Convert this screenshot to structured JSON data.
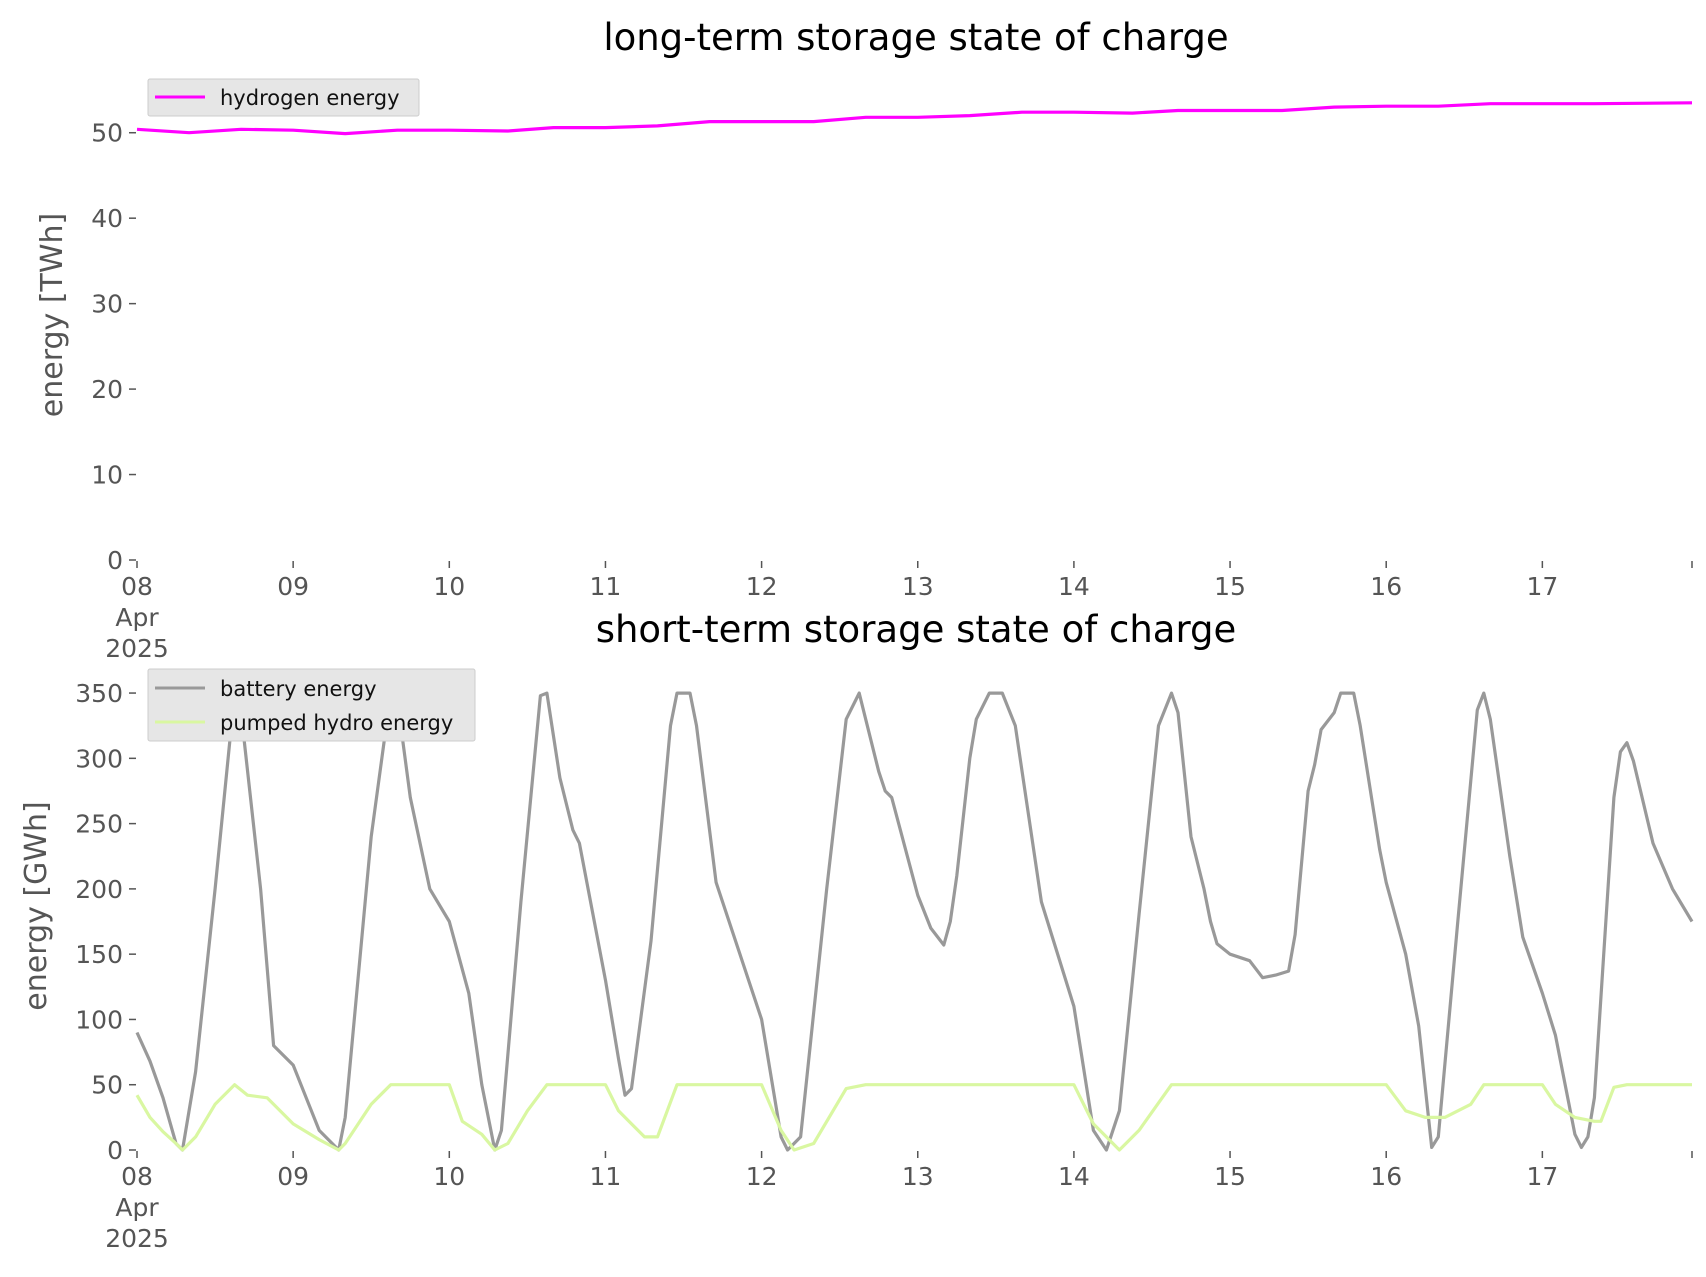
{
  "chart_data": [
    {
      "type": "line",
      "title": "long-term storage state of charge",
      "ylabel": "energy [TWh]",
      "xlabel": "",
      "ylim": [
        0,
        55
      ],
      "yticks": [
        0,
        10,
        20,
        30,
        40,
        50
      ],
      "x_start": "2025-04-08 00:00",
      "x_end": "2025-04-17 23:00",
      "x_tick_labels": [
        {
          "x": "2025-04-08",
          "lines": [
            "08",
            "Apr",
            "2025"
          ]
        },
        {
          "x": "2025-04-09",
          "lines": [
            "09"
          ]
        },
        {
          "x": "2025-04-10",
          "lines": [
            "10"
          ]
        },
        {
          "x": "2025-04-11",
          "lines": [
            "11"
          ]
        },
        {
          "x": "2025-04-12",
          "lines": [
            "12"
          ]
        },
        {
          "x": "2025-04-13",
          "lines": [
            "13"
          ]
        },
        {
          "x": "2025-04-14",
          "lines": [
            "14"
          ]
        },
        {
          "x": "2025-04-15",
          "lines": [
            "15"
          ]
        },
        {
          "x": "2025-04-16",
          "lines": [
            "16"
          ]
        },
        {
          "x": "2025-04-17",
          "lines": [
            "17"
          ]
        }
      ],
      "grid": false,
      "legend_position": "top-left",
      "series": [
        {
          "name": "hydrogen energy",
          "color": "#ff00ff",
          "points": [
            [
              "2025-04-08 00:00",
              50.4
            ],
            [
              "2025-04-08 08:00",
              50.0
            ],
            [
              "2025-04-08 16:00",
              50.4
            ],
            [
              "2025-04-09 00:00",
              50.3
            ],
            [
              "2025-04-09 08:00",
              49.9
            ],
            [
              "2025-04-09 16:00",
              50.3
            ],
            [
              "2025-04-10 00:00",
              50.3
            ],
            [
              "2025-04-10 09:00",
              50.2
            ],
            [
              "2025-04-10 16:00",
              50.6
            ],
            [
              "2025-04-11 00:00",
              50.6
            ],
            [
              "2025-04-11 08:00",
              50.8
            ],
            [
              "2025-04-11 16:00",
              51.3
            ],
            [
              "2025-04-12 00:00",
              51.3
            ],
            [
              "2025-04-12 08:00",
              51.3
            ],
            [
              "2025-04-12 16:00",
              51.8
            ],
            [
              "2025-04-13 00:00",
              51.8
            ],
            [
              "2025-04-13 08:00",
              52.0
            ],
            [
              "2025-04-13 16:00",
              52.4
            ],
            [
              "2025-04-14 00:00",
              52.4
            ],
            [
              "2025-04-14 09:00",
              52.3
            ],
            [
              "2025-04-14 16:00",
              52.6
            ],
            [
              "2025-04-15 00:00",
              52.6
            ],
            [
              "2025-04-15 08:00",
              52.6
            ],
            [
              "2025-04-15 16:00",
              53.0
            ],
            [
              "2025-04-16 00:00",
              53.1
            ],
            [
              "2025-04-16 08:00",
              53.1
            ],
            [
              "2025-04-16 16:00",
              53.4
            ],
            [
              "2025-04-17 00:00",
              53.4
            ],
            [
              "2025-04-17 08:00",
              53.4
            ],
            [
              "2025-04-17 23:00",
              53.5
            ]
          ]
        }
      ]
    },
    {
      "type": "line",
      "title": "short-term storage state of charge",
      "ylabel": "energy [GWh]",
      "xlabel": "",
      "ylim": [
        0,
        360
      ],
      "yticks": [
        0,
        50,
        100,
        150,
        200,
        250,
        300,
        350
      ],
      "x_start": "2025-04-08 00:00",
      "x_end": "2025-04-17 23:00",
      "x_tick_labels": [
        {
          "x": "2025-04-08",
          "lines": [
            "08",
            "Apr",
            "2025"
          ]
        },
        {
          "x": "2025-04-09",
          "lines": [
            "09"
          ]
        },
        {
          "x": "2025-04-10",
          "lines": [
            "10"
          ]
        },
        {
          "x": "2025-04-11",
          "lines": [
            "11"
          ]
        },
        {
          "x": "2025-04-12",
          "lines": [
            "12"
          ]
        },
        {
          "x": "2025-04-13",
          "lines": [
            "13"
          ]
        },
        {
          "x": "2025-04-14",
          "lines": [
            "14"
          ]
        },
        {
          "x": "2025-04-15",
          "lines": [
            "15"
          ]
        },
        {
          "x": "2025-04-16",
          "lines": [
            "16"
          ]
        },
        {
          "x": "2025-04-17",
          "lines": [
            "17"
          ]
        }
      ],
      "grid": false,
      "legend_position": "top-left",
      "series": [
        {
          "name": "battery energy",
          "color": "#999999",
          "points": [
            [
              "2025-04-08 00:00",
              90
            ],
            [
              "2025-04-08 02:00",
              68
            ],
            [
              "2025-04-08 04:00",
              40
            ],
            [
              "2025-04-08 06:00",
              5
            ],
            [
              "2025-04-08 07:00",
              0
            ],
            [
              "2025-04-08 09:00",
              60
            ],
            [
              "2025-04-08 12:00",
              200
            ],
            [
              "2025-04-08 15:00",
              350
            ],
            [
              "2025-04-08 16:00",
              335
            ],
            [
              "2025-04-08 19:00",
              200
            ],
            [
              "2025-04-08 21:00",
              80
            ],
            [
              "2025-04-09 00:00",
              65
            ],
            [
              "2025-04-09 02:00",
              40
            ],
            [
              "2025-04-09 04:00",
              15
            ],
            [
              "2025-04-09 07:00",
              0
            ],
            [
              "2025-04-09 08:00",
              25
            ],
            [
              "2025-04-09 12:00",
              240
            ],
            [
              "2025-04-09 15:00",
              350
            ],
            [
              "2025-04-09 16:00",
              345
            ],
            [
              "2025-04-09 18:00",
              270
            ],
            [
              "2025-04-09 21:00",
              200
            ],
            [
              "2025-04-10 00:00",
              175
            ],
            [
              "2025-04-10 03:00",
              120
            ],
            [
              "2025-04-10 05:00",
              50
            ],
            [
              "2025-04-10 07:00",
              0
            ],
            [
              "2025-04-10 08:00",
              15
            ],
            [
              "2025-04-10 11:00",
              190
            ],
            [
              "2025-04-10 14:00",
              348
            ],
            [
              "2025-04-10 15:00",
              350
            ],
            [
              "2025-04-10 17:00",
              285
            ],
            [
              "2025-04-10 19:00",
              245
            ],
            [
              "2025-04-10 20:00",
              235
            ],
            [
              "2025-04-11 00:00",
              130
            ],
            [
              "2025-04-11 02:00",
              70
            ],
            [
              "2025-04-11 03:00",
              42
            ],
            [
              "2025-04-11 04:00",
              47
            ],
            [
              "2025-04-11 07:00",
              160
            ],
            [
              "2025-04-11 10:00",
              325
            ],
            [
              "2025-04-11 11:00",
              350
            ],
            [
              "2025-04-11 13:00",
              350
            ],
            [
              "2025-04-11 14:00",
              325
            ],
            [
              "2025-04-11 17:00",
              205
            ],
            [
              "2025-04-12 00:00",
              100
            ],
            [
              "2025-04-12 03:00",
              10
            ],
            [
              "2025-04-12 04:00",
              0
            ],
            [
              "2025-04-12 06:00",
              10
            ],
            [
              "2025-04-12 10:00",
              200
            ],
            [
              "2025-04-12 13:00",
              330
            ],
            [
              "2025-04-12 15:00",
              350
            ],
            [
              "2025-04-12 16:00",
              330
            ],
            [
              "2025-04-12 18:00",
              290
            ],
            [
              "2025-04-12 19:00",
              275
            ],
            [
              "2025-04-12 20:00",
              270
            ],
            [
              "2025-04-13 00:00",
              195
            ],
            [
              "2025-04-13 02:00",
              170
            ],
            [
              "2025-04-13 04:00",
              157
            ],
            [
              "2025-04-13 05:00",
              175
            ],
            [
              "2025-04-13 06:00",
              210
            ],
            [
              "2025-04-13 08:00",
              300
            ],
            [
              "2025-04-13 09:00",
              330
            ],
            [
              "2025-04-13 11:00",
              350
            ],
            [
              "2025-04-13 13:00",
              350
            ],
            [
              "2025-04-13 15:00",
              325
            ],
            [
              "2025-04-13 19:00",
              190
            ],
            [
              "2025-04-14 00:00",
              110
            ],
            [
              "2025-04-14 03:00",
              15
            ],
            [
              "2025-04-14 05:00",
              0
            ],
            [
              "2025-04-14 07:00",
              30
            ],
            [
              "2025-04-14 10:00",
              180
            ],
            [
              "2025-04-14 13:00",
              325
            ],
            [
              "2025-04-14 15:00",
              350
            ],
            [
              "2025-04-14 16:00",
              335
            ],
            [
              "2025-04-14 18:00",
              240
            ],
            [
              "2025-04-14 20:00",
              200
            ],
            [
              "2025-04-14 21:00",
              175
            ],
            [
              "2025-04-14 22:00",
              158
            ],
            [
              "2025-04-15 00:00",
              150
            ],
            [
              "2025-04-15 03:00",
              145
            ],
            [
              "2025-04-15 05:00",
              132
            ],
            [
              "2025-04-15 07:00",
              134
            ],
            [
              "2025-04-15 09:00",
              137
            ],
            [
              "2025-04-15 10:00",
              165
            ],
            [
              "2025-04-15 12:00",
              275
            ],
            [
              "2025-04-15 13:00",
              295
            ],
            [
              "2025-04-15 14:00",
              322
            ],
            [
              "2025-04-15 16:00",
              335
            ],
            [
              "2025-04-15 17:00",
              350
            ],
            [
              "2025-04-15 19:00",
              350
            ],
            [
              "2025-04-15 20:00",
              325
            ],
            [
              "2025-04-15 23:00",
              230
            ],
            [
              "2025-04-16 00:00",
              205
            ],
            [
              "2025-04-16 03:00",
              150
            ],
            [
              "2025-04-16 05:00",
              95
            ],
            [
              "2025-04-16 07:00",
              2
            ],
            [
              "2025-04-16 08:00",
              10
            ],
            [
              "2025-04-16 11:00",
              175
            ],
            [
              "2025-04-16 14:00",
              337
            ],
            [
              "2025-04-16 15:00",
              350
            ],
            [
              "2025-04-16 16:00",
              330
            ],
            [
              "2025-04-16 19:00",
              225
            ],
            [
              "2025-04-16 21:00",
              163
            ],
            [
              "2025-04-17 00:00",
              120
            ],
            [
              "2025-04-17 02:00",
              88
            ],
            [
              "2025-04-17 05:00",
              12
            ],
            [
              "2025-04-17 06:00",
              2
            ],
            [
              "2025-04-17 07:00",
              10
            ],
            [
              "2025-04-17 08:00",
              40
            ],
            [
              "2025-04-17 11:00",
              270
            ],
            [
              "2025-04-17 12:00",
              305
            ],
            [
              "2025-04-17 13:00",
              312
            ],
            [
              "2025-04-17 14:00",
              298
            ],
            [
              "2025-04-17 17:00",
              235
            ],
            [
              "2025-04-17 20:00",
              200
            ],
            [
              "2025-04-17 23:00",
              175
            ]
          ]
        },
        {
          "name": "pumped hydro energy",
          "color": "#d9f7a1",
          "points": [
            [
              "2025-04-08 00:00",
              42
            ],
            [
              "2025-04-08 02:00",
              25
            ],
            [
              "2025-04-08 04:00",
              14
            ],
            [
              "2025-04-08 06:00",
              5
            ],
            [
              "2025-04-08 07:00",
              0
            ],
            [
              "2025-04-08 09:00",
              10
            ],
            [
              "2025-04-08 12:00",
              35
            ],
            [
              "2025-04-08 15:00",
              50
            ],
            [
              "2025-04-08 17:00",
              42
            ],
            [
              "2025-04-08 20:00",
              40
            ],
            [
              "2025-04-09 00:00",
              20
            ],
            [
              "2025-04-09 02:00",
              14
            ],
            [
              "2025-04-09 04:00",
              8
            ],
            [
              "2025-04-09 07:00",
              0
            ],
            [
              "2025-04-09 08:00",
              5
            ],
            [
              "2025-04-09 12:00",
              35
            ],
            [
              "2025-04-09 15:00",
              50
            ],
            [
              "2025-04-10 00:00",
              50
            ],
            [
              "2025-04-10 02:00",
              22
            ],
            [
              "2025-04-10 05:00",
              12
            ],
            [
              "2025-04-10 07:00",
              0
            ],
            [
              "2025-04-10 09:00",
              5
            ],
            [
              "2025-04-10 12:00",
              30
            ],
            [
              "2025-04-10 15:00",
              50
            ],
            [
              "2025-04-11 00:00",
              50
            ],
            [
              "2025-04-11 02:00",
              30
            ],
            [
              "2025-04-11 04:00",
              20
            ],
            [
              "2025-04-11 06:00",
              10
            ],
            [
              "2025-04-11 08:00",
              10
            ],
            [
              "2025-04-11 11:00",
              50
            ],
            [
              "2025-04-12 00:00",
              50
            ],
            [
              "2025-04-12 03:00",
              15
            ],
            [
              "2025-04-12 05:00",
              0
            ],
            [
              "2025-04-12 08:00",
              5
            ],
            [
              "2025-04-12 13:00",
              47
            ],
            [
              "2025-04-12 16:00",
              50
            ],
            [
              "2025-04-13 00:00",
              50
            ],
            [
              "2025-04-13 12:00",
              50
            ],
            [
              "2025-04-14 00:00",
              50
            ],
            [
              "2025-04-14 03:00",
              20
            ],
            [
              "2025-04-14 05:00",
              10
            ],
            [
              "2025-04-14 07:00",
              0
            ],
            [
              "2025-04-14 10:00",
              15
            ],
            [
              "2025-04-14 15:00",
              50
            ],
            [
              "2025-04-15 00:00",
              50
            ],
            [
              "2025-04-15 12:00",
              50
            ],
            [
              "2025-04-16 00:00",
              50
            ],
            [
              "2025-04-16 03:00",
              30
            ],
            [
              "2025-04-16 06:00",
              25
            ],
            [
              "2025-04-16 09:00",
              25
            ],
            [
              "2025-04-16 13:00",
              35
            ],
            [
              "2025-04-16 15:00",
              50
            ],
            [
              "2025-04-17 00:00",
              50
            ],
            [
              "2025-04-17 02:00",
              35
            ],
            [
              "2025-04-17 05:00",
              25
            ],
            [
              "2025-04-17 08:00",
              22
            ],
            [
              "2025-04-17 09:00",
              22
            ],
            [
              "2025-04-17 11:00",
              48
            ],
            [
              "2025-04-17 13:00",
              50
            ],
            [
              "2025-04-17 23:00",
              50
            ]
          ]
        }
      ]
    }
  ]
}
